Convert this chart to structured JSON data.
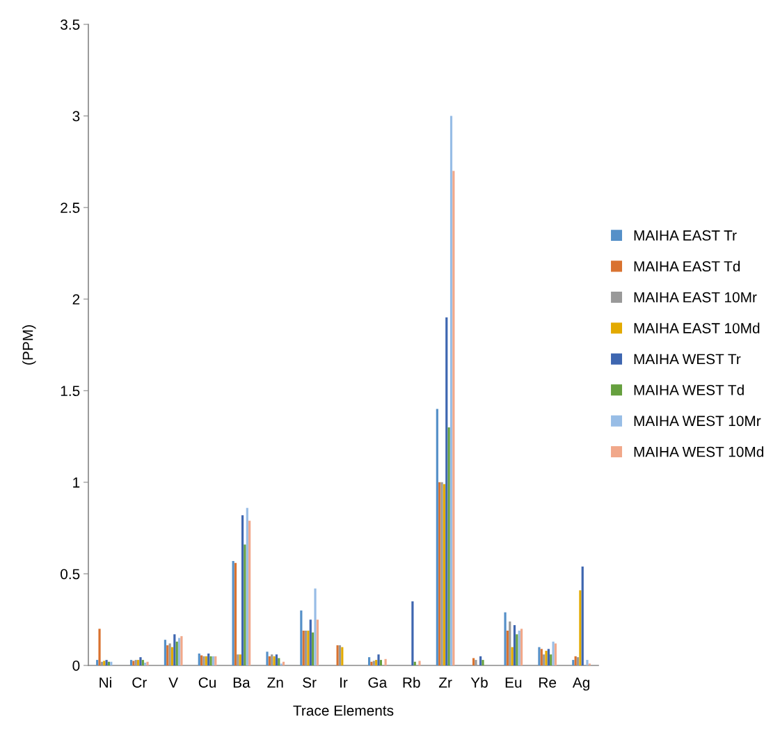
{
  "chart_data": {
    "type": "bar",
    "xlabel": "Trace Elements",
    "ylabel": "(PPM)",
    "categories": [
      "Ni",
      "Cr",
      "V",
      "Cu",
      "Ba",
      "Zn",
      "Sr",
      "Ir",
      "Ga",
      "Rb",
      "Zr",
      "Yb",
      "Eu",
      "Re",
      "Ag"
    ],
    "series": [
      {
        "name": "MAIHA EAST Tr",
        "color": "#5590c8",
        "values": [
          0.03,
          0.03,
          0.14,
          0.065,
          0.57,
          0.075,
          0.3,
          null,
          0.045,
          null,
          1.4,
          null,
          0.29,
          0.1,
          0.03
        ]
      },
      {
        "name": "MAIHA EAST Td",
        "color": "#d9722f",
        "values": [
          0.2,
          0.025,
          0.11,
          0.055,
          0.56,
          0.05,
          0.19,
          0.11,
          0.02,
          null,
          1.0,
          0.04,
          0.19,
          0.09,
          0.05
        ]
      },
      {
        "name": "MAIHA EAST 10Mr",
        "color": "#999999",
        "values": [
          0.02,
          0.03,
          0.12,
          0.05,
          0.06,
          0.06,
          0.19,
          0.11,
          0.025,
          null,
          1.0,
          0.03,
          0.24,
          0.06,
          0.045
        ]
      },
      {
        "name": "MAIHA EAST 10Md",
        "color": "#e3aa00",
        "values": [
          0.025,
          0.03,
          0.1,
          0.05,
          0.06,
          0.05,
          0.19,
          0.1,
          0.03,
          null,
          0.99,
          null,
          0.1,
          0.08,
          0.41
        ]
      },
      {
        "name": "MAIHA WEST Tr",
        "color": "#3e66b0",
        "values": [
          0.03,
          0.045,
          0.17,
          0.065,
          0.82,
          0.06,
          0.25,
          null,
          0.06,
          0.35,
          1.9,
          0.05,
          0.22,
          0.09,
          0.54
        ]
      },
      {
        "name": "MAIHA WEST Td",
        "color": "#66a03f",
        "values": [
          0.02,
          0.03,
          0.13,
          0.05,
          0.66,
          0.04,
          0.18,
          null,
          0.03,
          0.02,
          1.3,
          0.03,
          0.17,
          0.06,
          null
        ]
      },
      {
        "name": "MAIHA WEST 10Mr",
        "color": "#98bde6",
        "values": [
          0.02,
          0.015,
          0.15,
          0.05,
          0.86,
          0.01,
          0.42,
          null,
          null,
          null,
          3.0,
          null,
          0.19,
          0.13,
          0.03
        ]
      },
      {
        "name": "MAIHA WEST 10Md",
        "color": "#f1a88a",
        "values": [
          null,
          0.02,
          0.16,
          0.05,
          0.79,
          0.02,
          0.25,
          null,
          0.035,
          0.025,
          2.7,
          null,
          0.2,
          0.12,
          0.01
        ]
      }
    ],
    "ylim": [
      0,
      3.5
    ],
    "yticks": [
      0,
      0.5,
      1,
      1.5,
      2,
      2.5,
      3,
      3.5
    ],
    "grid": false,
    "legend": "right"
  }
}
